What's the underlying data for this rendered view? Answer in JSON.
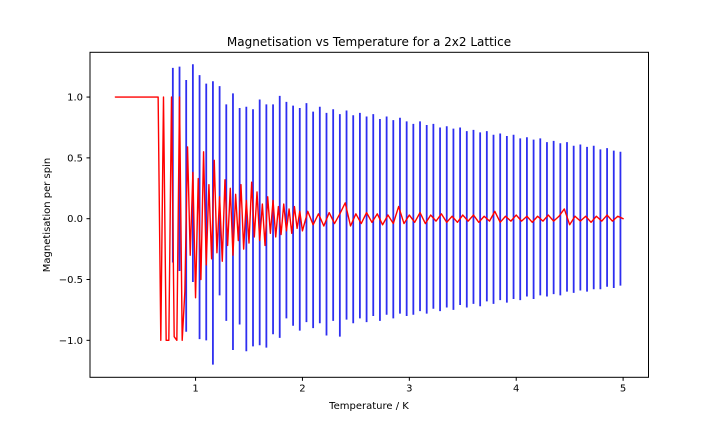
{
  "figure": {
    "background": "#ffffff"
  },
  "chart_data": {
    "type": "line",
    "title": "Magnetisation vs Temperature for a 2x2 Lattice",
    "xlabel": "Temperature / K",
    "ylabel": "Magnetisation per spin",
    "xlim": [
      0.0125,
      5.2375
    ],
    "ylim": [
      -1.304,
      1.368
    ],
    "grid": false,
    "legend": "none",
    "axis_color": "#000000",
    "xticks": [
      {
        "v": 1,
        "label": "1"
      },
      {
        "v": 2,
        "label": "2"
      },
      {
        "v": 3,
        "label": "3"
      },
      {
        "v": 4,
        "label": "4"
      },
      {
        "v": 5,
        "label": "5"
      }
    ],
    "yticks": [
      {
        "v": -1.0,
        "label": "−1.0"
      },
      {
        "v": -0.5,
        "label": "−0.5"
      },
      {
        "v": 0.0,
        "label": "0.0"
      },
      {
        "v": 0.5,
        "label": "0.5"
      },
      {
        "v": 1.0,
        "label": "1.0"
      }
    ],
    "series": [
      {
        "name": "magnetisation-mean",
        "kind": "line",
        "color": "#ff0000",
        "linewidth": 1.4,
        "t": [
          0.25,
          0.275,
          0.3,
          0.325,
          0.35,
          0.375,
          0.4,
          0.425,
          0.45,
          0.475,
          0.5,
          0.525,
          0.55,
          0.575,
          0.6,
          0.625,
          0.65,
          0.675,
          0.7,
          0.725,
          0.75,
          0.775,
          0.8,
          0.825,
          0.85,
          0.875,
          0.9,
          0.925,
          0.95,
          0.975,
          1.0,
          1.025,
          1.05,
          1.075,
          1.1,
          1.125,
          1.15,
          1.175,
          1.2,
          1.225,
          1.25,
          1.275,
          1.3,
          1.325,
          1.35,
          1.375,
          1.4,
          1.425,
          1.45,
          1.475,
          1.5,
          1.525,
          1.55,
          1.575,
          1.6,
          1.625,
          1.65,
          1.675,
          1.7,
          1.725,
          1.75,
          1.775,
          1.8,
          1.825,
          1.85,
          1.875,
          1.9,
          1.925,
          1.95,
          1.975,
          2.0,
          2.05,
          2.1,
          2.15,
          2.2,
          2.25,
          2.3,
          2.35,
          2.4,
          2.45,
          2.5,
          2.55,
          2.6,
          2.65,
          2.7,
          2.75,
          2.8,
          2.85,
          2.9,
          2.95,
          3.0,
          3.05,
          3.1,
          3.15,
          3.2,
          3.25,
          3.3,
          3.35,
          3.4,
          3.45,
          3.5,
          3.55,
          3.6,
          3.65,
          3.7,
          3.75,
          3.8,
          3.85,
          3.9,
          3.95,
          4.0,
          4.05,
          4.1,
          4.15,
          4.2,
          4.25,
          4.3,
          4.35,
          4.4,
          4.45,
          4.5,
          4.55,
          4.6,
          4.65,
          4.7,
          4.75,
          4.8,
          4.85,
          4.9,
          4.95,
          5.0
        ],
        "m": [
          1,
          1,
          1,
          1,
          1,
          1,
          1,
          1,
          1,
          1,
          1,
          1,
          1,
          1,
          1,
          1,
          1,
          -1,
          1,
          -1,
          -1,
          1,
          -0.97,
          -1,
          1,
          -1,
          -0.6,
          0.59,
          -0.3,
          0.38,
          -0.65,
          0.33,
          -0.5,
          0.55,
          -0.38,
          0.28,
          -0.33,
          0.48,
          -0.28,
          0.18,
          -0.35,
          0.32,
          -0.22,
          0.25,
          -0.3,
          0.2,
          -0.18,
          0.28,
          -0.25,
          0.15,
          -0.2,
          0.3,
          -0.15,
          0.22,
          -0.18,
          0.12,
          -0.22,
          0.18,
          -0.12,
          0.15,
          -0.15,
          0.1,
          -0.13,
          0.12,
          -0.1,
          0.08,
          -0.12,
          0.1,
          -0.08,
          0.06,
          -0.1,
          0.06,
          -0.05,
          0.04,
          -0.06,
          0.05,
          -0.04,
          0.04,
          0.13,
          -0.06,
          0.04,
          -0.04,
          0.05,
          -0.03,
          0.04,
          -0.05,
          0.03,
          -0.04,
          0.1,
          -0.04,
          0.03,
          -0.03,
          0.05,
          -0.04,
          0.03,
          -0.02,
          0.04,
          -0.03,
          0.02,
          -0.03,
          0.03,
          -0.02,
          0.03,
          -0.03,
          0.02,
          -0.02,
          0.06,
          -0.03,
          0.02,
          -0.02,
          0.03,
          -0.02,
          0.02,
          -0.03,
          0.02,
          -0.02,
          0.03,
          -0.02,
          0.02,
          0.08,
          -0.05,
          0.02,
          -0.02,
          0.02,
          -0.03,
          0.02,
          -0.02,
          0.03,
          -0.02,
          0.02,
          0.0
        ]
      },
      {
        "name": "magnetisation-errorbars",
        "kind": "errorbar",
        "color": "#2e2ef0",
        "linewidth": 1.8,
        "t": [
          0.7875,
          0.85,
          0.9125,
          0.975,
          1.0375,
          1.1,
          1.1625,
          1.225,
          1.2875,
          1.35,
          1.4125,
          1.475,
          1.5375,
          1.6,
          1.6625,
          1.725,
          1.7875,
          1.85,
          1.9125,
          1.975,
          2.0375,
          2.1,
          2.1625,
          2.225,
          2.2875,
          2.35,
          2.4125,
          2.475,
          2.5375,
          2.6,
          2.6625,
          2.725,
          2.7875,
          2.85,
          2.9125,
          2.975,
          3.0375,
          3.1,
          3.1625,
          3.225,
          3.2875,
          3.35,
          3.4125,
          3.475,
          3.5375,
          3.6,
          3.6625,
          3.725,
          3.7875,
          3.85,
          3.9125,
          3.975,
          4.0375,
          4.1,
          4.1625,
          4.225,
          4.2875,
          4.35,
          4.4125,
          4.475,
          4.5375,
          4.6,
          4.6625,
          4.725,
          4.7875,
          4.85,
          4.9125,
          4.975
        ],
        "top": [
          1.24,
          1.25,
          1.14,
          1.27,
          1.18,
          1.11,
          1.13,
          1.09,
          0.94,
          1.03,
          0.91,
          0.92,
          0.9,
          0.98,
          0.94,
          0.94,
          1.01,
          0.96,
          0.93,
          0.91,
          0.95,
          0.88,
          0.92,
          0.87,
          0.9,
          0.86,
          0.89,
          0.85,
          0.87,
          0.84,
          0.86,
          0.82,
          0.84,
          0.81,
          0.83,
          0.8,
          0.78,
          0.8,
          0.77,
          0.78,
          0.75,
          0.76,
          0.74,
          0.75,
          0.72,
          0.73,
          0.71,
          0.72,
          0.69,
          0.7,
          0.68,
          0.69,
          0.66,
          0.67,
          0.65,
          0.66,
          0.63,
          0.64,
          0.62,
          0.63,
          0.6,
          0.61,
          0.59,
          0.6,
          0.57,
          0.58,
          0.56,
          0.55
        ],
        "bottom": [
          -0.36,
          -0.43,
          -0.93,
          -0.52,
          -0.99,
          -1.0,
          -1.2,
          -0.63,
          -0.84,
          -1.08,
          -0.87,
          -1.09,
          -1.05,
          -1.04,
          -1.06,
          -0.95,
          -0.98,
          -0.82,
          -0.88,
          -0.92,
          -0.85,
          -0.9,
          -0.86,
          -0.96,
          -0.84,
          -0.97,
          -0.83,
          -0.86,
          -0.82,
          -0.85,
          -0.8,
          -0.84,
          -0.79,
          -0.82,
          -0.78,
          -0.8,
          -0.79,
          -0.76,
          -0.78,
          -0.74,
          -0.76,
          -0.73,
          -0.75,
          -0.71,
          -0.73,
          -0.7,
          -0.72,
          -0.68,
          -0.7,
          -0.67,
          -0.69,
          -0.66,
          -0.67,
          -0.64,
          -0.66,
          -0.63,
          -0.64,
          -0.62,
          -0.63,
          -0.6,
          -0.61,
          -0.59,
          -0.6,
          -0.58,
          -0.58,
          -0.56,
          -0.57,
          -0.55
        ]
      }
    ]
  }
}
